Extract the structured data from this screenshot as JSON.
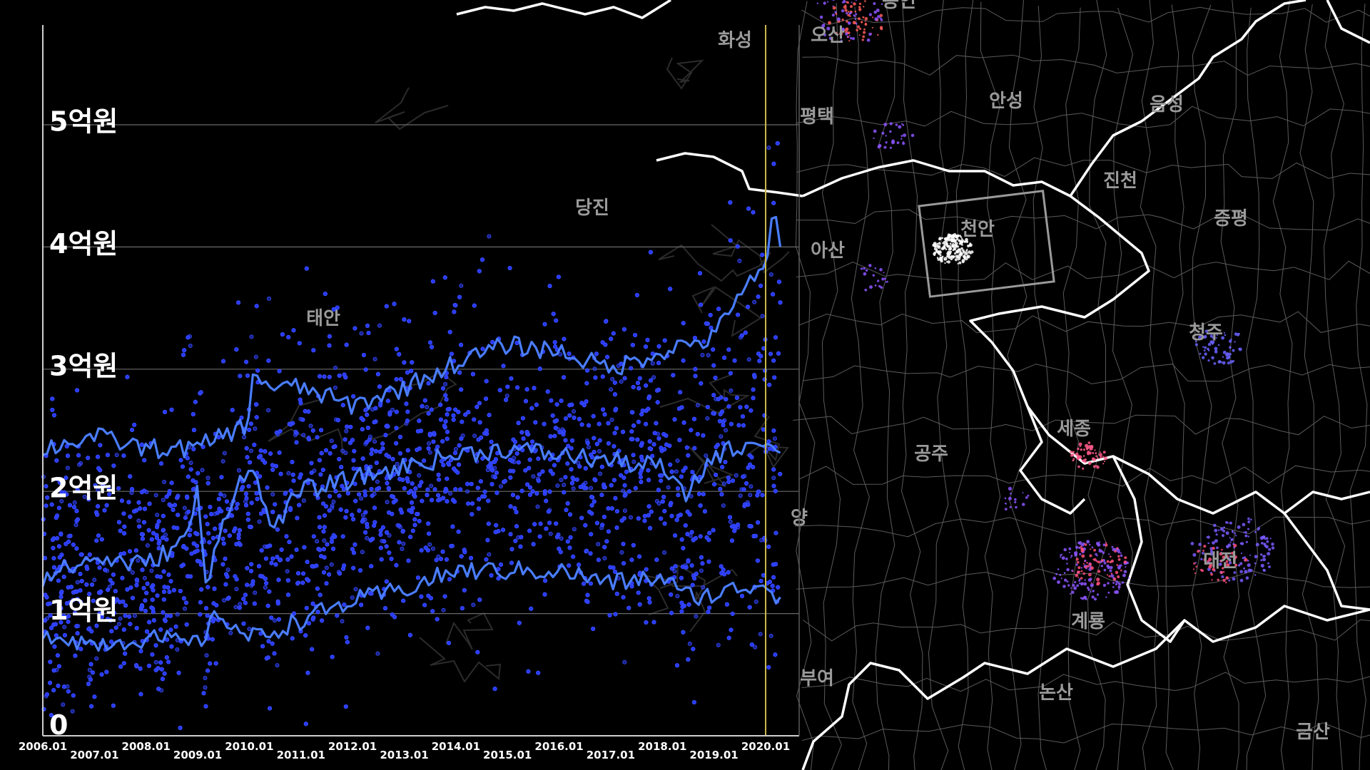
{
  "chart_data": {
    "type": "scatter",
    "title": "",
    "xlabel": "",
    "ylabel": "",
    "unit": "억원",
    "xlim": [
      "2006.01",
      "2020.05"
    ],
    "ylim": [
      0,
      5.6
    ],
    "y_ticks": [
      {
        "value": 0,
        "label": "0"
      },
      {
        "value": 1,
        "label": "1억원"
      },
      {
        "value": 2,
        "label": "2억원"
      },
      {
        "value": 3,
        "label": "3억원"
      },
      {
        "value": 4,
        "label": "4억원"
      },
      {
        "value": 5,
        "label": "5억원"
      }
    ],
    "x_ticks": [
      "2006.01",
      "2007.01",
      "2008.01",
      "2009.01",
      "2010.01",
      "2011.01",
      "2012.01",
      "2013.01",
      "2014.01",
      "2015.01",
      "2016.01",
      "2017.01",
      "2018.01",
      "2019.01",
      "2020.01"
    ],
    "marker_line_date": "2020.01",
    "grid": true,
    "legend": "none",
    "point_color": "#2a3cff",
    "line_color": "#4a7dff",
    "marker_line_color": "#c8b84a",
    "series": [
      {
        "kind": "line",
        "dates": [
          "2006.01",
          "2007.01",
          "2008.01",
          "2009.01",
          "2009.06",
          "2010.01",
          "2010.06",
          "2011.01",
          "2012.01",
          "2013.01",
          "2014.01",
          "2015.01",
          "2016.01",
          "2017.01",
          "2018.01",
          "2018.06",
          "2019.01",
          "2019.06",
          "2020.01",
          "2020.03",
          "2020.05"
        ],
        "values": [
          0.85,
          0.75,
          0.8,
          0.75,
          1.0,
          0.8,
          0.85,
          0.95,
          1.1,
          1.2,
          1.35,
          1.35,
          1.35,
          1.25,
          1.3,
          1.15,
          1.15,
          1.2,
          1.25,
          1.15,
          1.15
        ]
      },
      {
        "kind": "line",
        "dates": [
          "2006.01",
          "2007.01",
          "2008.01",
          "2008.10",
          "2009.01",
          "2009.03",
          "2009.06",
          "2010.01",
          "2010.06",
          "2011.01",
          "2012.01",
          "2013.01",
          "2014.01",
          "2015.01",
          "2016.01",
          "2017.01",
          "2018.01",
          "2018.06",
          "2019.01",
          "2019.06",
          "2020.01",
          "2020.03",
          "2020.05"
        ],
        "values": [
          1.3,
          1.45,
          1.4,
          1.6,
          2.0,
          1.15,
          1.7,
          2.25,
          1.7,
          2.0,
          2.1,
          2.2,
          2.3,
          2.35,
          2.3,
          2.25,
          2.2,
          1.95,
          2.3,
          2.35,
          2.45,
          2.3,
          2.3
        ]
      },
      {
        "kind": "line",
        "dates": [
          "2006.01",
          "2007.01",
          "2008.01",
          "2009.01",
          "2009.06",
          "2010.01",
          "2010.02",
          "2010.06",
          "2011.01",
          "2012.01",
          "2013.01",
          "2014.01",
          "2015.01",
          "2016.01",
          "2017.01",
          "2018.01",
          "2018.06",
          "2019.01",
          "2019.06",
          "2020.01",
          "2020.03",
          "2020.05"
        ],
        "values": [
          2.35,
          2.45,
          2.35,
          2.35,
          2.45,
          2.55,
          3.0,
          2.85,
          2.85,
          2.7,
          2.85,
          3.05,
          3.2,
          3.15,
          3.0,
          3.15,
          3.2,
          3.25,
          3.6,
          3.8,
          4.35,
          3.8
        ]
      }
    ]
  },
  "map": {
    "labels": [
      "화성",
      "오산",
      "평택",
      "안성",
      "음성",
      "진천",
      "증평",
      "아산",
      "천안",
      "청주",
      "세종",
      "공주",
      "대전",
      "계룡",
      "논산",
      "부여",
      "금산",
      "용인",
      "태안",
      "당진",
      "양"
    ]
  }
}
